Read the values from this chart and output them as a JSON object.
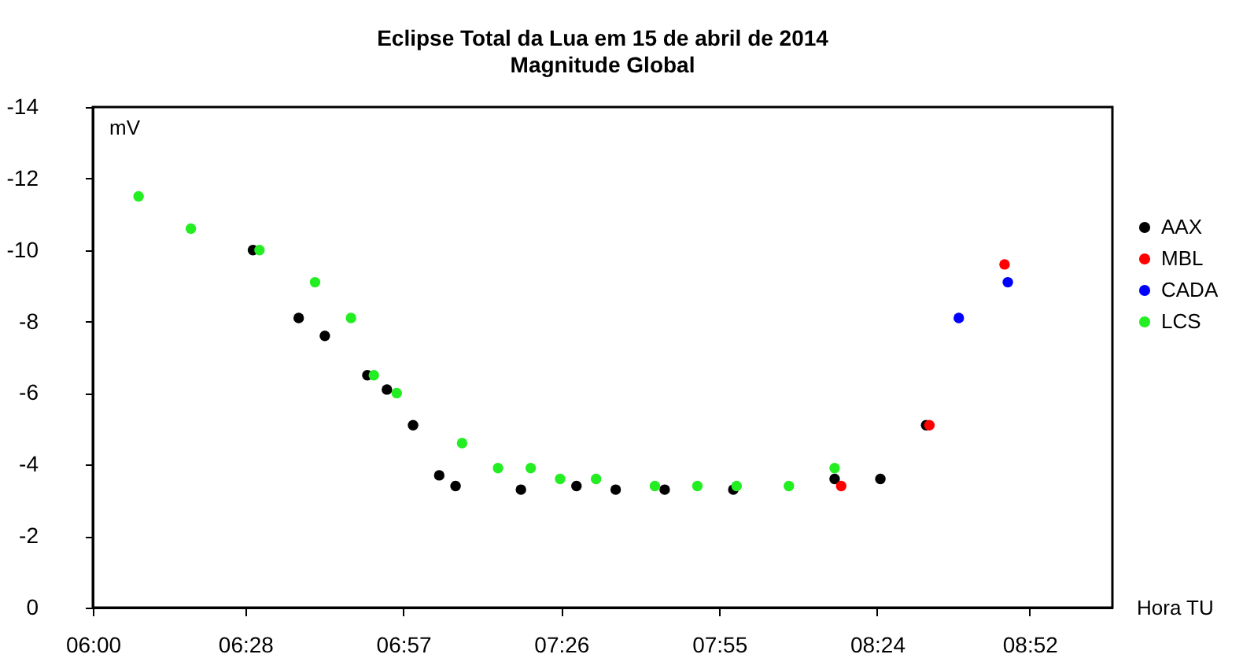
{
  "chart_data": {
    "type": "scatter",
    "title": "Eclipse Total da Lua em 15 de abril de 2014",
    "subtitle": "Magnitude Global",
    "xlabel": "Hora TU",
    "ylabel": "mV",
    "xlim": [
      6.0,
      9.12
    ],
    "xticks": [
      {
        "value": 6.0,
        "label": "06:00"
      },
      {
        "value": 6.4667,
        "label": "06:28"
      },
      {
        "value": 6.95,
        "label": "06:57"
      },
      {
        "value": 7.4333,
        "label": "07:26"
      },
      {
        "value": 7.9167,
        "label": "07:55"
      },
      {
        "value": 8.4,
        "label": "08:24"
      },
      {
        "value": 8.8667,
        "label": "08:52"
      }
    ],
    "ylim": [
      0,
      -14
    ],
    "yticks": [
      0,
      -2,
      -4,
      -6,
      -8,
      -10,
      -12,
      -14
    ],
    "grid": false,
    "legend": "right",
    "marker": "circle",
    "series": [
      {
        "name": "AAX",
        "color": "#000000",
        "x": [
          6.49,
          6.63,
          6.71,
          6.84,
          6.9,
          6.98,
          7.06,
          7.11,
          7.31,
          7.48,
          7.6,
          7.75,
          7.96,
          8.27,
          8.41,
          8.55
        ],
        "values": [
          -10.0,
          -8.1,
          -7.6,
          -6.5,
          -6.1,
          -5.1,
          -3.7,
          -3.4,
          -3.3,
          -3.4,
          -3.3,
          -3.3,
          -3.3,
          -3.6,
          -3.6,
          -5.1
        ]
      },
      {
        "name": "MBL",
        "color": "#ff0000",
        "x": [
          8.29,
          8.56,
          8.79
        ],
        "values": [
          -3.4,
          -5.1,
          -9.6
        ]
      },
      {
        "name": "CADA",
        "color": "#0000ff",
        "x": [
          8.65,
          8.8
        ],
        "values": [
          -8.1,
          -9.1
        ]
      },
      {
        "name": "LCS",
        "color": "#22ee22",
        "x": [
          6.14,
          6.3,
          6.51,
          6.68,
          6.79,
          6.86,
          6.93,
          7.13,
          7.24,
          7.34,
          7.43,
          7.54,
          7.72,
          7.85,
          7.97,
          8.13,
          8.27
        ],
        "values": [
          -11.5,
          -10.6,
          -10.0,
          -9.1,
          -8.1,
          -6.5,
          -6.0,
          -4.6,
          -3.9,
          -3.9,
          -3.6,
          -3.6,
          -3.4,
          -3.4,
          -3.4,
          -3.4,
          -3.9
        ]
      }
    ]
  }
}
